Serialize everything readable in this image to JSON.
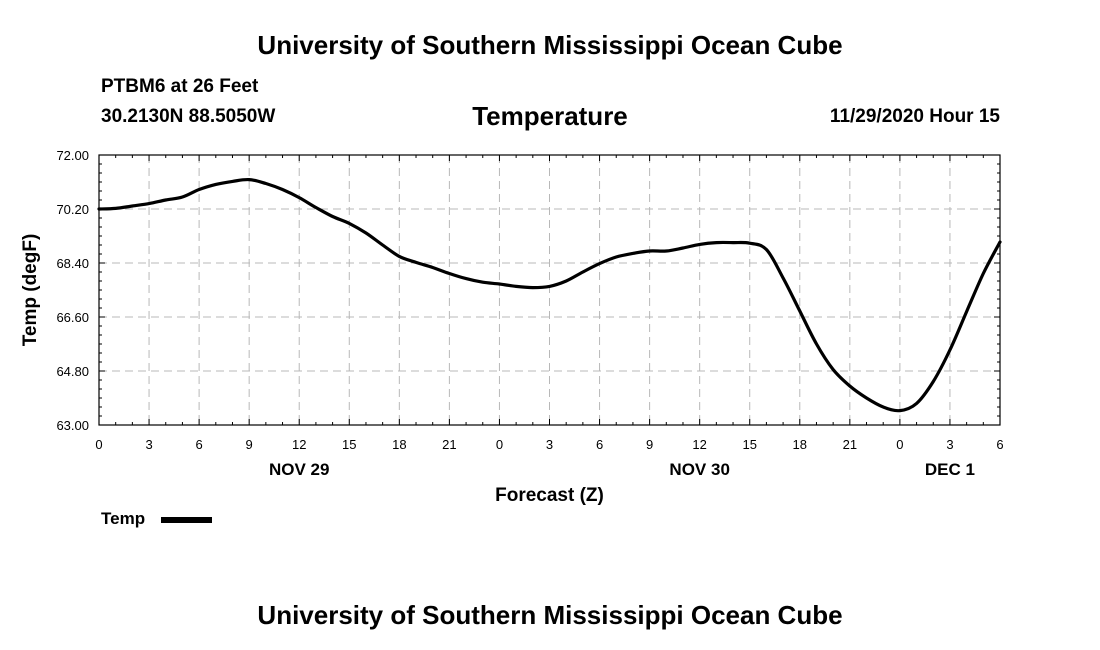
{
  "header": {
    "top_title": "University of Southern Mississippi Ocean Cube",
    "station": "PTBM6 at 26 Feet",
    "coords": "30.2130N 88.5050W",
    "run_time": "11/29/2020 Hour 15",
    "bottom_title": "University of Southern Mississippi Ocean Cube"
  },
  "legend": {
    "label": "Temp",
    "color": "#000000"
  },
  "chart_data": {
    "type": "line",
    "title": "Temperature",
    "xlabel": "Forecast (Z)",
    "ylabel": "Temp (degF)",
    "grid": true,
    "xlim": [
      0,
      54
    ],
    "ylim": [
      63.0,
      72.0
    ],
    "x_ticks": [
      0,
      3,
      6,
      9,
      12,
      15,
      18,
      21,
      24,
      27,
      30,
      33,
      36,
      39,
      42,
      45,
      48,
      51,
      54
    ],
    "x_tick_labels": [
      "0",
      "3",
      "6",
      "9",
      "12",
      "15",
      "18",
      "21",
      "0",
      "3",
      "6",
      "9",
      "12",
      "15",
      "18",
      "21",
      "0",
      "3",
      "6"
    ],
    "y_ticks": [
      63.0,
      64.8,
      66.6,
      68.4,
      70.2,
      72.0
    ],
    "y_tick_labels": [
      "63.00",
      "64.80",
      "66.60",
      "68.40",
      "70.20",
      "72.00"
    ],
    "date_labels": [
      {
        "x": 12,
        "label": "NOV 29"
      },
      {
        "x": 36,
        "label": "NOV 30"
      },
      {
        "x": 51,
        "label": "DEC 1"
      }
    ],
    "series": [
      {
        "name": "Temp",
        "color": "#000000",
        "x": [
          0,
          1,
          2,
          3,
          4,
          5,
          6,
          7,
          8,
          9,
          10,
          11,
          12,
          13,
          14,
          15,
          16,
          17,
          18,
          19,
          20,
          21,
          22,
          23,
          24,
          25,
          26,
          27,
          28,
          29,
          30,
          31,
          32,
          33,
          34,
          35,
          36,
          37,
          38,
          39,
          40,
          41,
          42,
          43,
          44,
          45,
          46,
          47,
          48,
          49,
          50,
          51,
          52,
          53,
          54
        ],
        "values": [
          70.2,
          70.22,
          70.3,
          70.38,
          70.5,
          70.6,
          70.85,
          71.02,
          71.12,
          71.18,
          71.05,
          70.85,
          70.58,
          70.25,
          69.95,
          69.72,
          69.4,
          69.0,
          68.62,
          68.42,
          68.25,
          68.05,
          67.88,
          67.76,
          67.7,
          67.62,
          67.58,
          67.62,
          67.8,
          68.1,
          68.38,
          68.6,
          68.72,
          68.8,
          68.8,
          68.9,
          69.02,
          69.08,
          69.08,
          69.06,
          68.85,
          67.9,
          66.8,
          65.7,
          64.85,
          64.3,
          63.9,
          63.6,
          63.48,
          63.72,
          64.45,
          65.5,
          66.78,
          68.05,
          69.1
        ]
      }
    ]
  }
}
